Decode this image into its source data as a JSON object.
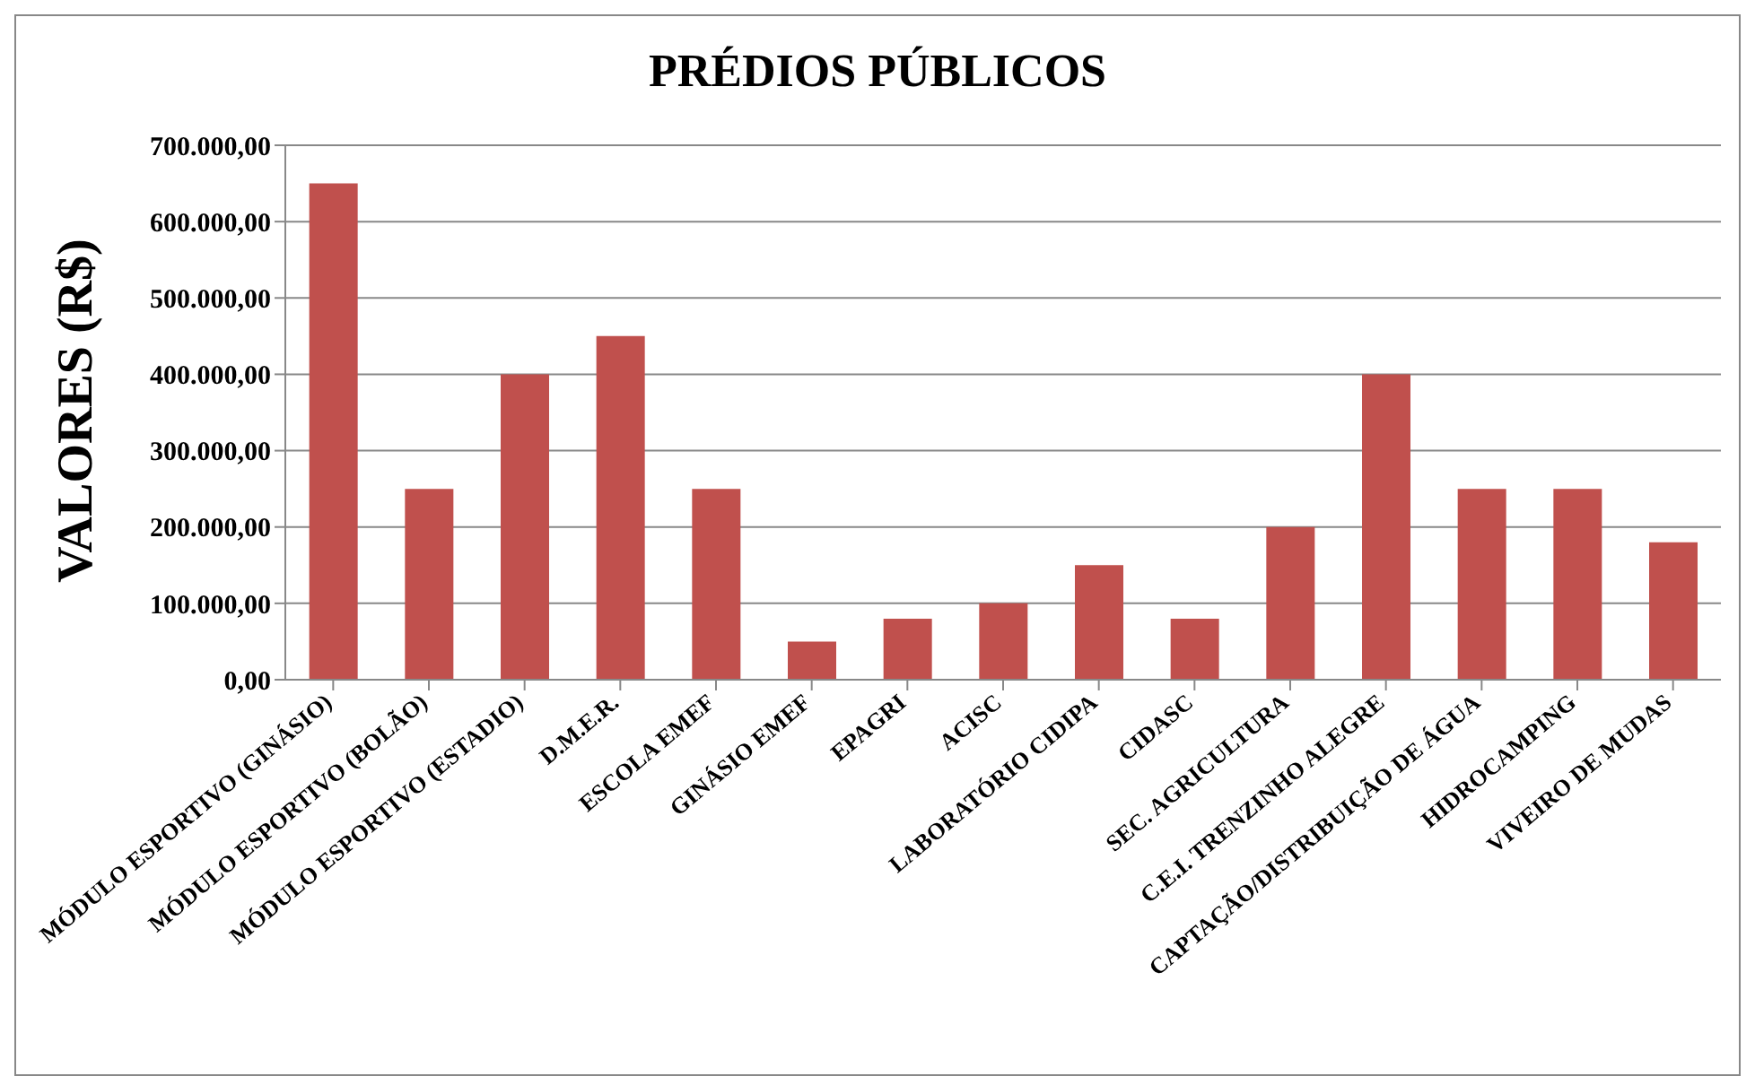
{
  "chart_data": {
    "type": "bar",
    "title": "PRÉDIOS PÚBLICOS",
    "ylabel": "VALORES (R$)",
    "categories": [
      "MÓDULO ESPORTIVO (GINÁSIO)",
      "MÓDULO ESPORTIVO (BOLÃO)",
      "MÓDULO ESPORTIVO (ESTADIO)",
      "D.M.E.R.",
      "ESCOLA EMEF",
      "GINÁSIO EMEF",
      "EPAGRI",
      "ACISC",
      "LABORATÓRIO CIDIPA",
      "CIDASC",
      "SEC. AGRICULTURA",
      "C.E.I. TRENZINHO ALEGRE",
      "CAPTAÇÃO/DISTRIBUIÇÃO DE ÁGUA",
      "HIDROCAMPING",
      "VIVEIRO DE MUDAS"
    ],
    "values": [
      650000,
      250000,
      400000,
      450000,
      250000,
      50000,
      80000,
      100000,
      150000,
      80000,
      200000,
      400000,
      250000,
      250000,
      180000
    ],
    "color": "#c0504d",
    "ylim": [
      0,
      700000
    ],
    "yticks": [
      {
        "value": 0,
        "label": "0,00"
      },
      {
        "value": 100000,
        "label": "100.000,00"
      },
      {
        "value": 200000,
        "label": "200.000,00"
      },
      {
        "value": 300000,
        "label": "300.000,00"
      },
      {
        "value": 400000,
        "label": "400.000,00"
      },
      {
        "value": 500000,
        "label": "500.000,00"
      },
      {
        "value": 600000,
        "label": "600.000,00"
      },
      {
        "value": 700000,
        "label": "700.000,00"
      }
    ],
    "grid": "y"
  }
}
